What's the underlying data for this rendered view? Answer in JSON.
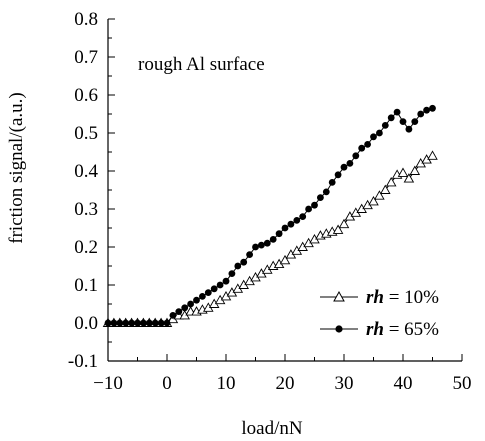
{
  "chart_data": {
    "type": "line",
    "xlabel": "load/nN",
    "ylabel": "friction signal/(a.u.)",
    "annotation": "rough Al surface",
    "xlim": [
      -10,
      50
    ],
    "ylim": [
      -0.1,
      0.8
    ],
    "x_ticks": [
      "-10",
      "0",
      "10",
      "20",
      "30",
      "40",
      "50"
    ],
    "y_ticks": [
      "-0.1",
      "0.0",
      "0.1",
      "0.2",
      "0.3",
      "0.4",
      "0.5",
      "0.6",
      "0.7",
      "0.8"
    ],
    "legend_position": "lower-right",
    "series": [
      {
        "name_prefix": "rh",
        "name_suffix": " = 10%",
        "marker": "open-triangle",
        "x": [
          -10,
          -9,
          -8,
          -7,
          -6,
          -5,
          -4,
          -3,
          -2,
          -1,
          0,
          1,
          2,
          3,
          4,
          5,
          6,
          7,
          8,
          9,
          10,
          11,
          12,
          13,
          14,
          15,
          16,
          17,
          18,
          19,
          20,
          21,
          22,
          23,
          24,
          25,
          26,
          27,
          28,
          29,
          30,
          31,
          32,
          33,
          34,
          35,
          36,
          37,
          38,
          39,
          40,
          41,
          42,
          43,
          44,
          45
        ],
        "y": [
          0,
          0,
          0,
          0,
          0,
          0,
          0,
          0,
          0,
          0,
          0,
          0.01,
          0.02,
          0.02,
          0.03,
          0.03,
          0.035,
          0.04,
          0.05,
          0.06,
          0.07,
          0.08,
          0.09,
          0.1,
          0.11,
          0.12,
          0.13,
          0.14,
          0.15,
          0.155,
          0.165,
          0.18,
          0.19,
          0.2,
          0.21,
          0.22,
          0.23,
          0.235,
          0.24,
          0.245,
          0.26,
          0.28,
          0.29,
          0.3,
          0.31,
          0.32,
          0.335,
          0.35,
          0.37,
          0.39,
          0.395,
          0.38,
          0.4,
          0.42,
          0.43,
          0.44
        ]
      },
      {
        "name_prefix": "rh",
        "name_suffix": " = 65%",
        "marker": "filled-circle",
        "x": [
          -10,
          -9,
          -8,
          -7,
          -6,
          -5,
          -4,
          -3,
          -2,
          -1,
          0,
          1,
          2,
          3,
          4,
          5,
          6,
          7,
          8,
          9,
          10,
          11,
          12,
          13,
          14,
          15,
          16,
          17,
          18,
          19,
          20,
          21,
          22,
          23,
          24,
          25,
          26,
          27,
          28,
          29,
          30,
          31,
          32,
          33,
          34,
          35,
          36,
          37,
          38,
          39,
          40,
          41,
          42,
          43,
          44,
          45
        ],
        "y": [
          0,
          0,
          0,
          0,
          0,
          0,
          0,
          0,
          0,
          0,
          0,
          0.02,
          0.03,
          0.04,
          0.05,
          0.06,
          0.07,
          0.08,
          0.09,
          0.1,
          0.11,
          0.13,
          0.15,
          0.16,
          0.18,
          0.2,
          0.205,
          0.21,
          0.22,
          0.235,
          0.25,
          0.26,
          0.27,
          0.28,
          0.3,
          0.31,
          0.33,
          0.345,
          0.37,
          0.39,
          0.41,
          0.42,
          0.44,
          0.46,
          0.47,
          0.49,
          0.5,
          0.52,
          0.54,
          0.555,
          0.53,
          0.51,
          0.53,
          0.55,
          0.56,
          0.565
        ]
      }
    ]
  }
}
